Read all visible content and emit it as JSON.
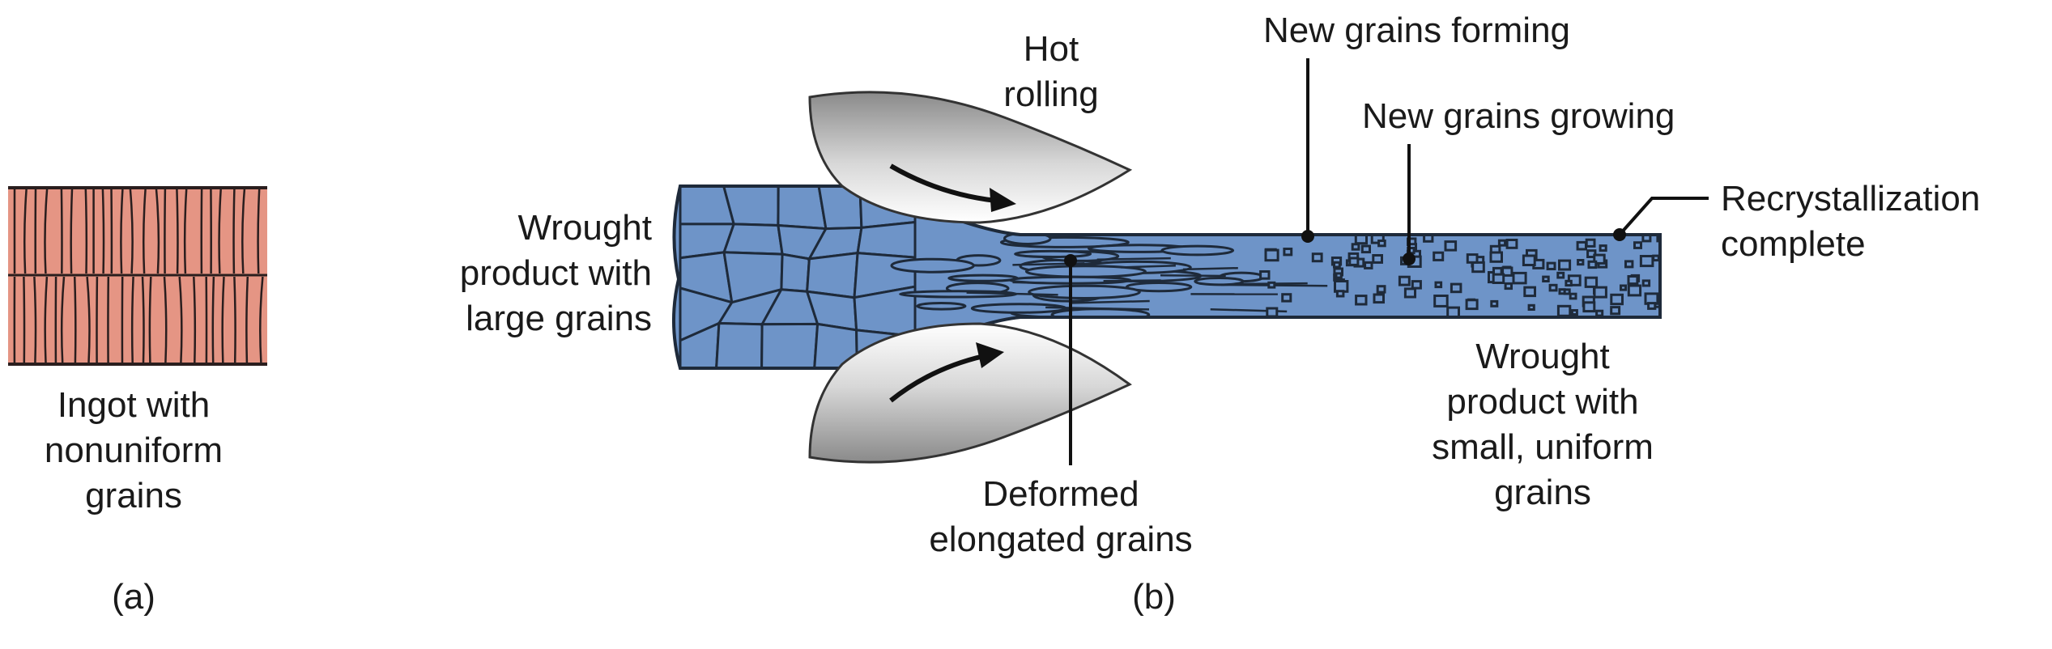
{
  "panel_a": {
    "caption_lines": [
      "Ingot with",
      "nonuniform",
      "grains"
    ],
    "panel_label": "(a)",
    "ingot_color": "#e59584"
  },
  "panel_b": {
    "panel_label": "(b)",
    "roll_label_lines": [
      "Hot",
      "rolling"
    ],
    "input_label_lines": [
      "Wrought",
      "product with",
      "large grains"
    ],
    "deformed_label_lines": [
      "Deformed",
      "elongated grains"
    ],
    "forming_label": "New grains forming",
    "growing_label": "New grains growing",
    "recryst_label_lines": [
      "Recrystallization",
      "complete"
    ],
    "output_label_lines": [
      "Wrought",
      "product with",
      "small, uniform",
      "grains"
    ],
    "metal_color": "#6e94c8"
  }
}
